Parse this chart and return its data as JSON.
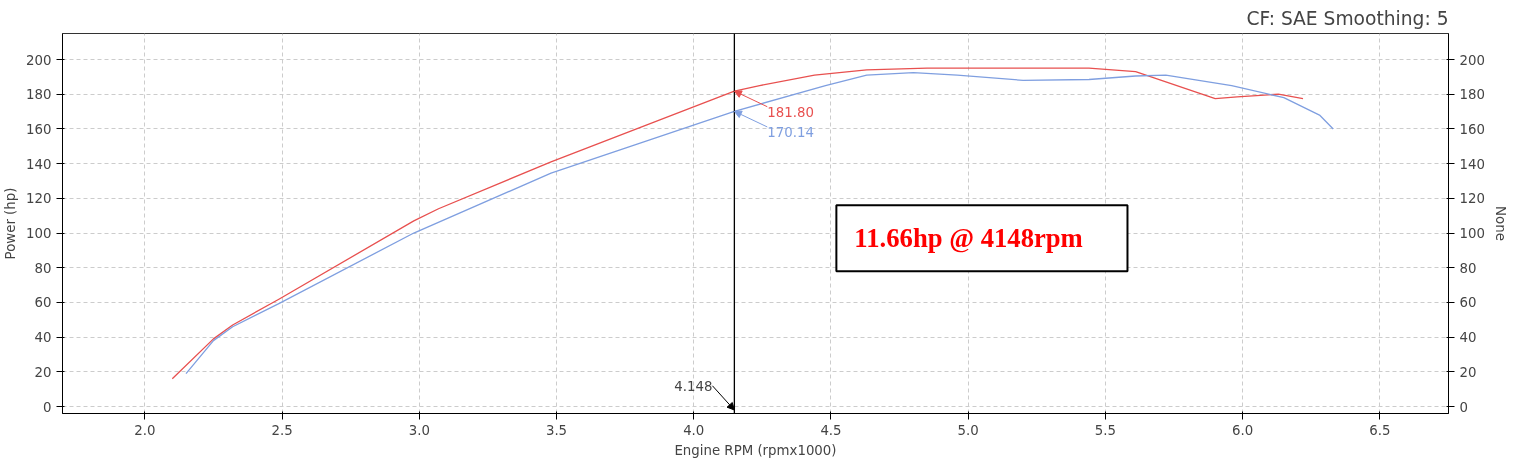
{
  "chart_data": {
    "type": "line",
    "subtitle": "CF: SAE Smoothing: 5",
    "xlabel": "Engine RPM (rpmx1000)",
    "ylabel": "Power (hp)",
    "y2label": "None",
    "xlim": [
      1.7,
      6.75
    ],
    "xticks": [
      {
        "value": 2,
        "label": "2.0"
      },
      2.5,
      {
        "value": 3,
        "label": "3.0"
      },
      3.5,
      {
        "value": 4,
        "label": "4.0"
      },
      4.5,
      {
        "value": 5,
        "label": "5.0"
      },
      5.5,
      {
        "value": 6,
        "label": "6.0"
      },
      6.5
    ],
    "ylim": [
      -4,
      215
    ],
    "yticks": [
      0,
      20,
      40,
      60,
      80,
      100,
      120,
      140,
      160,
      180,
      200
    ],
    "y2lim": [
      -4,
      215
    ],
    "y2ticks": [
      0,
      20,
      40,
      60,
      80,
      100,
      120,
      140,
      160,
      180,
      200
    ],
    "grid": true,
    "line_style": "solid",
    "marker": "none",
    "series": [
      {
        "color": "#e8504f",
        "x": [
          2.1,
          2.25,
          2.32,
          2.49,
          2.98,
          3.07,
          3.48,
          4.148,
          4.24,
          4.44,
          4.63,
          4.85,
          5.16,
          5.44,
          5.61,
          5.9,
          5.98,
          6.13,
          6.22
        ],
        "values": [
          16,
          39,
          47,
          62,
          107,
          114,
          141,
          181.8,
          185,
          191,
          194,
          195,
          195,
          195,
          193,
          177.5,
          178.5,
          180,
          177.5
        ]
      },
      {
        "color": "#7f9fe0",
        "x": [
          2.15,
          2.25,
          2.32,
          2.49,
          2.98,
          3.48,
          4.148,
          4.48,
          4.63,
          4.8,
          4.96,
          5.2,
          5.44,
          5.61,
          5.72,
          5.96,
          6.15,
          6.28,
          6.33
        ],
        "values": [
          19,
          38,
          46,
          59.5,
          100,
          134.5,
          170.14,
          185,
          191,
          192.5,
          191,
          188,
          188.5,
          190.5,
          191,
          185,
          178,
          168,
          160
        ]
      }
    ],
    "ref_lines": [
      {
        "axis": "x",
        "value": 4.148,
        "label": "4.148",
        "color": "#000000"
      }
    ],
    "annotations": [
      {
        "text": "181.80",
        "x": 4.148,
        "y": 181.8
      },
      {
        "text": "170.14",
        "x": 4.148,
        "y": 170.14
      },
      "11.66hp @ 4148rpm"
    ]
  }
}
